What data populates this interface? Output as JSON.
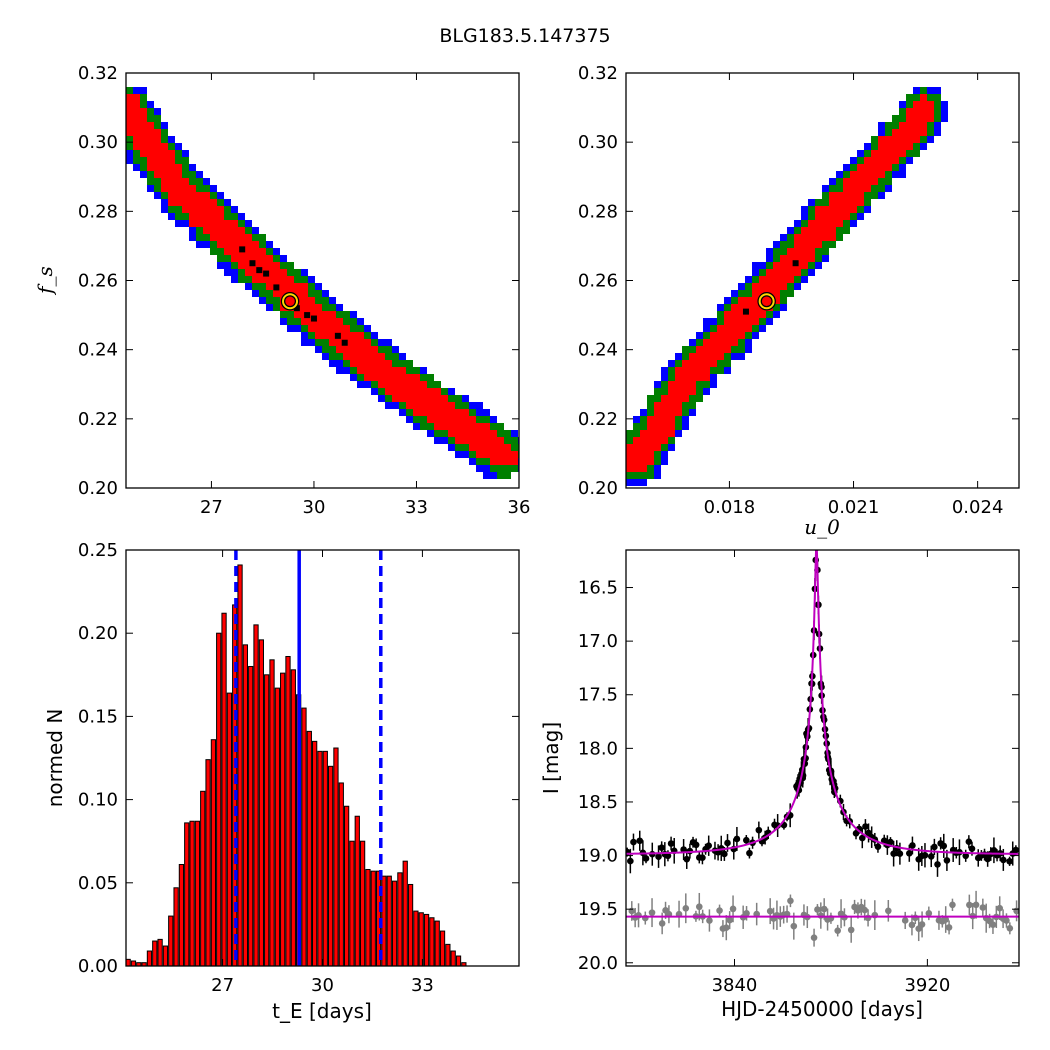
{
  "title": "BLG183.5.147375",
  "colors": {
    "blue": "#0000ff",
    "green": "#007f00",
    "red": "#ff0000",
    "best_fit_marker": "#ffd700",
    "histogram_bar": "#ff0000",
    "model_curve": "#bf00bf",
    "data_main": "#000000",
    "data_residual": "#808080"
  },
  "chart_data": [
    {
      "type": "heatmap",
      "panel": "top-left",
      "xlabel": "",
      "ylabel": "f_s",
      "xlim": [
        24.5,
        36
      ],
      "ylim": [
        0.2,
        0.32
      ],
      "xticks": [
        "27",
        "30",
        "33",
        "36"
      ],
      "yticks": [
        "0.20",
        "0.22",
        "0.24",
        "0.26",
        "0.28",
        "0.30",
        "0.32"
      ],
      "band_centerline": [
        [
          24.5,
          0.31
        ],
        [
          26.0,
          0.287
        ],
        [
          28.0,
          0.268
        ],
        [
          30.0,
          0.25
        ],
        [
          32.0,
          0.234
        ],
        [
          34.0,
          0.22
        ],
        [
          35.5,
          0.21
        ]
      ],
      "best_fit": {
        "x": 29.3,
        "y": 0.254
      }
    },
    {
      "type": "heatmap",
      "panel": "top-right",
      "xlabel": "u_0",
      "ylabel": "",
      "xlim": [
        0.0155,
        0.025
      ],
      "ylim": [
        0.2,
        0.32
      ],
      "xticks": [
        "0.018",
        "0.021",
        "0.024"
      ],
      "yticks": [
        "0.20",
        "0.22",
        "0.24",
        "0.26",
        "0.28",
        "0.30",
        "0.32"
      ],
      "band_centerline": [
        [
          0.0158,
          0.208
        ],
        [
          0.017,
          0.232
        ],
        [
          0.0187,
          0.254
        ],
        [
          0.02,
          0.272
        ],
        [
          0.0213,
          0.29
        ],
        [
          0.0225,
          0.305
        ],
        [
          0.0227,
          0.309
        ]
      ],
      "best_fit": {
        "x": 0.0189,
        "y": 0.254
      }
    },
    {
      "type": "bar",
      "panel": "bottom-left",
      "xlabel": "t_E [days]",
      "ylabel": "normed N",
      "xlim": [
        24.1,
        35.9
      ],
      "ylim": [
        0,
        0.25
      ],
      "xticks": [
        "27",
        "30",
        "33"
      ],
      "yticks": [
        "0.00",
        "0.05",
        "0.10",
        "0.15",
        "0.20",
        "0.25"
      ],
      "bin_start": 24.1,
      "bin_width": 0.16,
      "values": [
        0.004,
        0.003,
        0.002,
        0.002,
        0.009,
        0.015,
        0.016,
        0.012,
        0.03,
        0.047,
        0.061,
        0.086,
        0.087,
        0.087,
        0.105,
        0.124,
        0.136,
        0.2,
        0.212,
        0.164,
        0.217,
        0.241,
        0.193,
        0.18,
        0.205,
        0.196,
        0.175,
        0.184,
        0.167,
        0.176,
        0.186,
        0.178,
        0.163,
        0.155,
        0.141,
        0.135,
        0.129,
        0.129,
        0.12,
        0.131,
        0.11,
        0.096,
        0.075,
        0.09,
        0.075,
        0.058,
        0.057,
        0.057,
        0.054,
        0.054,
        0.051,
        0.056,
        0.063,
        0.049,
        0.033,
        0.032,
        0.031,
        0.029,
        0.027,
        0.021,
        0.013,
        0.009,
        0.006,
        0.002
      ],
      "vlines": [
        {
          "x": 29.3,
          "style": "solid"
        },
        {
          "x": 27.4,
          "style": "dashed"
        },
        {
          "x": 31.75,
          "style": "dashed"
        }
      ]
    },
    {
      "type": "scatter",
      "panel": "bottom-right",
      "xlabel": "HJD-2450000 [days]",
      "ylabel": "I [mag]",
      "xlim": [
        3795,
        3958
      ],
      "ylim": [
        20.03,
        16.15
      ],
      "xticks": [
        "3840",
        "3920"
      ],
      "yticks": [
        "16.5",
        "17.0",
        "17.5",
        "18.0",
        "18.5",
        "19.0",
        "19.5",
        "20.0"
      ],
      "model": {
        "t0": 3874,
        "tE": 29.3,
        "u0": 0.0189,
        "fs": 0.254,
        "baseline": 18.99
      },
      "residual_level": 19.57
    }
  ]
}
